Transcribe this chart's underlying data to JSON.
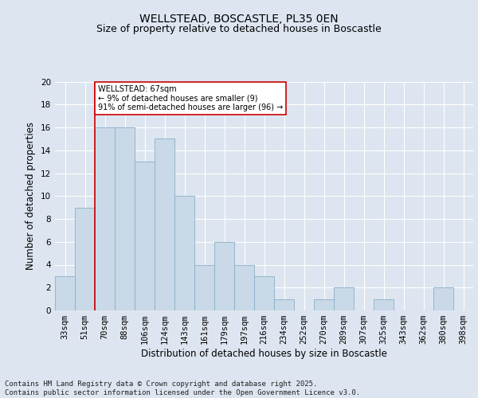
{
  "title": "WELLSTEAD, BOSCASTLE, PL35 0EN",
  "subtitle": "Size of property relative to detached houses in Boscastle",
  "xlabel": "Distribution of detached houses by size in Boscastle",
  "ylabel": "Number of detached properties",
  "categories": [
    "33sqm",
    "51sqm",
    "70sqm",
    "88sqm",
    "106sqm",
    "124sqm",
    "143sqm",
    "161sqm",
    "179sqm",
    "197sqm",
    "216sqm",
    "234sqm",
    "252sqm",
    "270sqm",
    "289sqm",
    "307sqm",
    "325sqm",
    "343sqm",
    "362sqm",
    "380sqm",
    "398sqm"
  ],
  "values": [
    3,
    9,
    16,
    16,
    13,
    15,
    10,
    4,
    6,
    4,
    3,
    1,
    0,
    1,
    2,
    0,
    1,
    0,
    0,
    2,
    0
  ],
  "bar_color": "#c9d9e8",
  "bar_edge_color": "#8bafc8",
  "marker_bar_index": 2,
  "marker_label": "WELLSTEAD: 67sqm",
  "marker_pct_smaller": "9% of detached houses are smaller (9)",
  "marker_pct_larger": "91% of semi-detached houses are larger (96)",
  "marker_line_color": "#cc0000",
  "annotation_box_color": "#ffffff",
  "annotation_box_edge": "#cc0000",
  "ylim": [
    0,
    20
  ],
  "yticks": [
    0,
    2,
    4,
    6,
    8,
    10,
    12,
    14,
    16,
    18,
    20
  ],
  "bg_color": "#dde5f0",
  "plot_bg_color": "#dde5f0",
  "grid_color": "#ffffff",
  "footer_text": "Contains HM Land Registry data © Crown copyright and database right 2025.\nContains public sector information licensed under the Open Government Licence v3.0.",
  "title_fontsize": 10,
  "subtitle_fontsize": 9,
  "axis_label_fontsize": 8.5,
  "tick_fontsize": 7.5,
  "footer_fontsize": 6.5
}
